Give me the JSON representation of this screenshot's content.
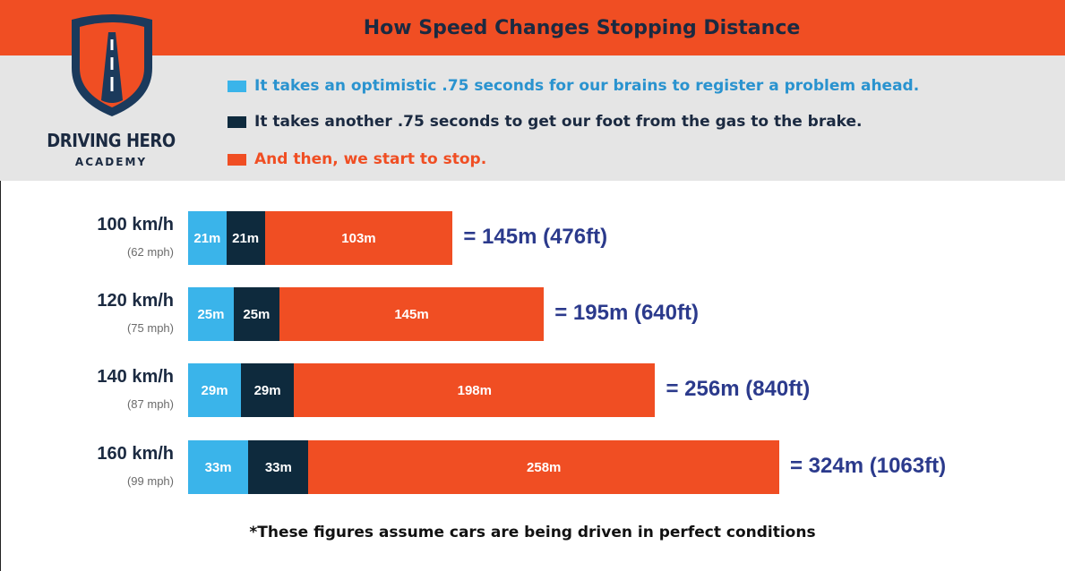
{
  "title": "How Speed Changes Stopping Distance",
  "brand": {
    "name": "DRIVING HERO",
    "sub": "ACADEMY"
  },
  "legend": [
    {
      "text": "It takes an optimistic .75 seconds for our brains to register a problem ahead.",
      "color": "#3ab4ea",
      "text_color": "#2a93cf"
    },
    {
      "text": "It takes another .75 seconds to get our foot from the gas to the brake.",
      "color": "#0e2a3d",
      "text_color": "#1b2a41"
    },
    {
      "text": "And then, we start to stop.",
      "color": "#f04e23",
      "text_color": "#f04e23"
    }
  ],
  "chart_data": {
    "type": "bar",
    "orientation": "horizontal",
    "stacked": true,
    "categories": [
      "100 km/h",
      "120 km/h",
      "140 km/h",
      "160 km/h"
    ],
    "category_subs": [
      "(62 mph)",
      "(75 mph)",
      "(87 mph)",
      "(99 mph)"
    ],
    "series": [
      {
        "values": [
          21,
          25,
          29,
          33
        ],
        "labels": [
          "21m",
          "25m",
          "29m",
          "33m"
        ],
        "color": "#3ab4ea"
      },
      {
        "values": [
          21,
          25,
          29,
          33
        ],
        "labels": [
          "21m",
          "25m",
          "29m",
          "33m"
        ],
        "color": "#0e2a3d"
      },
      {
        "values": [
          103,
          145,
          198,
          258
        ],
        "labels": [
          "103m",
          "145m",
          "198m",
          "258m"
        ],
        "color": "#f04e23"
      }
    ],
    "totals": [
      "= 145m (476ft)",
      "= 195m (640ft)",
      "= 256m (840ft)",
      "= 324m (1063ft)"
    ],
    "units": "m"
  },
  "footnote": "*These figures assume cars are being driven in perfect conditions"
}
